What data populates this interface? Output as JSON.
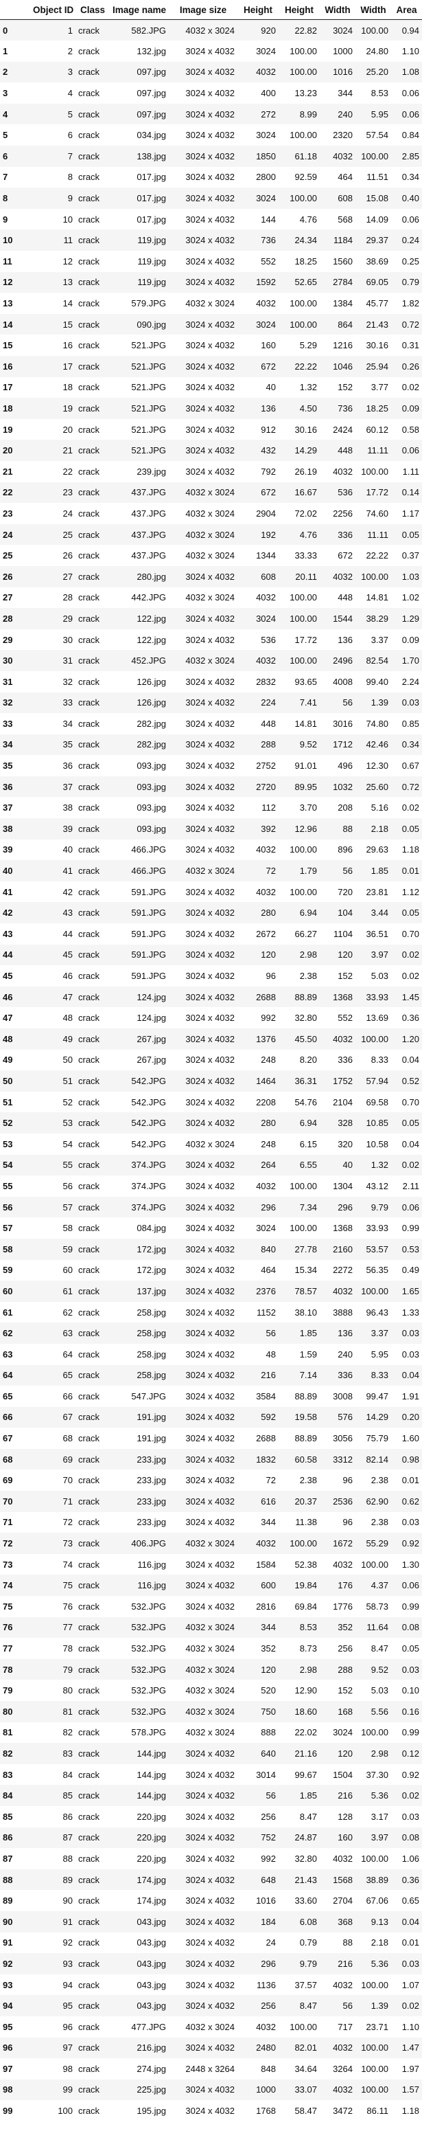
{
  "columns": [
    "",
    "Object ID",
    "Class",
    "Image name",
    "Image size",
    "Height",
    "Height",
    "Width",
    "Width",
    "Area"
  ],
  "rows": [
    [
      "0",
      "1",
      "crack",
      "582.JPG",
      "4032 x 3024",
      "920",
      "22.82",
      "3024",
      "100.00",
      "0.94"
    ],
    [
      "1",
      "2",
      "crack",
      "132.jpg",
      "3024 x 4032",
      "3024",
      "100.00",
      "1000",
      "24.80",
      "1.10"
    ],
    [
      "2",
      "3",
      "crack",
      "097.jpg",
      "3024 x 4032",
      "4032",
      "100.00",
      "1016",
      "25.20",
      "1.08"
    ],
    [
      "3",
      "4",
      "crack",
      "097.jpg",
      "3024 x 4032",
      "400",
      "13.23",
      "344",
      "8.53",
      "0.06"
    ],
    [
      "4",
      "5",
      "crack",
      "097.jpg",
      "3024 x 4032",
      "272",
      "8.99",
      "240",
      "5.95",
      "0.06"
    ],
    [
      "5",
      "6",
      "crack",
      "034.jpg",
      "3024 x 4032",
      "3024",
      "100.00",
      "2320",
      "57.54",
      "0.84"
    ],
    [
      "6",
      "7",
      "crack",
      "138.jpg",
      "3024 x 4032",
      "1850",
      "61.18",
      "4032",
      "100.00",
      "2.85"
    ],
    [
      "7",
      "8",
      "crack",
      "017.jpg",
      "3024 x 4032",
      "2800",
      "92.59",
      "464",
      "11.51",
      "0.34"
    ],
    [
      "8",
      "9",
      "crack",
      "017.jpg",
      "3024 x 4032",
      "3024",
      "100.00",
      "608",
      "15.08",
      "0.40"
    ],
    [
      "9",
      "10",
      "crack",
      "017.jpg",
      "3024 x 4032",
      "144",
      "4.76",
      "568",
      "14.09",
      "0.06"
    ],
    [
      "10",
      "11",
      "crack",
      "119.jpg",
      "3024 x 4032",
      "736",
      "24.34",
      "1184",
      "29.37",
      "0.24"
    ],
    [
      "11",
      "12",
      "crack",
      "119.jpg",
      "3024 x 4032",
      "552",
      "18.25",
      "1560",
      "38.69",
      "0.25"
    ],
    [
      "12",
      "13",
      "crack",
      "119.jpg",
      "3024 x 4032",
      "1592",
      "52.65",
      "2784",
      "69.05",
      "0.79"
    ],
    [
      "13",
      "14",
      "crack",
      "579.JPG",
      "4032 x 3024",
      "4032",
      "100.00",
      "1384",
      "45.77",
      "1.82"
    ],
    [
      "14",
      "15",
      "crack",
      "090.jpg",
      "3024 x 4032",
      "3024",
      "100.00",
      "864",
      "21.43",
      "0.72"
    ],
    [
      "15",
      "16",
      "crack",
      "521.JPG",
      "3024 x 4032",
      "160",
      "5.29",
      "1216",
      "30.16",
      "0.31"
    ],
    [
      "16",
      "17",
      "crack",
      "521.JPG",
      "3024 x 4032",
      "672",
      "22.22",
      "1046",
      "25.94",
      "0.26"
    ],
    [
      "17",
      "18",
      "crack",
      "521.JPG",
      "3024 x 4032",
      "40",
      "1.32",
      "152",
      "3.77",
      "0.02"
    ],
    [
      "18",
      "19",
      "crack",
      "521.JPG",
      "3024 x 4032",
      "136",
      "4.50",
      "736",
      "18.25",
      "0.09"
    ],
    [
      "19",
      "20",
      "crack",
      "521.JPG",
      "3024 x 4032",
      "912",
      "30.16",
      "2424",
      "60.12",
      "0.58"
    ],
    [
      "20",
      "21",
      "crack",
      "521.JPG",
      "3024 x 4032",
      "432",
      "14.29",
      "448",
      "11.11",
      "0.06"
    ],
    [
      "21",
      "22",
      "crack",
      "239.jpg",
      "3024 x 4032",
      "792",
      "26.19",
      "4032",
      "100.00",
      "1.11"
    ],
    [
      "22",
      "23",
      "crack",
      "437.JPG",
      "4032 x 3024",
      "672",
      "16.67",
      "536",
      "17.72",
      "0.14"
    ],
    [
      "23",
      "24",
      "crack",
      "437.JPG",
      "4032 x 3024",
      "2904",
      "72.02",
      "2256",
      "74.60",
      "1.17"
    ],
    [
      "24",
      "25",
      "crack",
      "437.JPG",
      "4032 x 3024",
      "192",
      "4.76",
      "336",
      "11.11",
      "0.05"
    ],
    [
      "25",
      "26",
      "crack",
      "437.JPG",
      "4032 x 3024",
      "1344",
      "33.33",
      "672",
      "22.22",
      "0.37"
    ],
    [
      "26",
      "27",
      "crack",
      "280.jpg",
      "3024 x 4032",
      "608",
      "20.11",
      "4032",
      "100.00",
      "1.03"
    ],
    [
      "27",
      "28",
      "crack",
      "442.JPG",
      "4032 x 3024",
      "4032",
      "100.00",
      "448",
      "14.81",
      "1.02"
    ],
    [
      "28",
      "29",
      "crack",
      "122.jpg",
      "3024 x 4032",
      "3024",
      "100.00",
      "1544",
      "38.29",
      "1.29"
    ],
    [
      "29",
      "30",
      "crack",
      "122.jpg",
      "3024 x 4032",
      "536",
      "17.72",
      "136",
      "3.37",
      "0.09"
    ],
    [
      "30",
      "31",
      "crack",
      "452.JPG",
      "4032 x 3024",
      "4032",
      "100.00",
      "2496",
      "82.54",
      "1.70"
    ],
    [
      "31",
      "32",
      "crack",
      "126.jpg",
      "3024 x 4032",
      "2832",
      "93.65",
      "4008",
      "99.40",
      "2.24"
    ],
    [
      "32",
      "33",
      "crack",
      "126.jpg",
      "3024 x 4032",
      "224",
      "7.41",
      "56",
      "1.39",
      "0.03"
    ],
    [
      "33",
      "34",
      "crack",
      "282.jpg",
      "3024 x 4032",
      "448",
      "14.81",
      "3016",
      "74.80",
      "0.85"
    ],
    [
      "34",
      "35",
      "crack",
      "282.jpg",
      "3024 x 4032",
      "288",
      "9.52",
      "1712",
      "42.46",
      "0.34"
    ],
    [
      "35",
      "36",
      "crack",
      "093.jpg",
      "3024 x 4032",
      "2752",
      "91.01",
      "496",
      "12.30",
      "0.67"
    ],
    [
      "36",
      "37",
      "crack",
      "093.jpg",
      "3024 x 4032",
      "2720",
      "89.95",
      "1032",
      "25.60",
      "0.72"
    ],
    [
      "37",
      "38",
      "crack",
      "093.jpg",
      "3024 x 4032",
      "112",
      "3.70",
      "208",
      "5.16",
      "0.02"
    ],
    [
      "38",
      "39",
      "crack",
      "093.jpg",
      "3024 x 4032",
      "392",
      "12.96",
      "88",
      "2.18",
      "0.05"
    ],
    [
      "39",
      "40",
      "crack",
      "466.JPG",
      "3024 x 4032",
      "4032",
      "100.00",
      "896",
      "29.63",
      "1.18"
    ],
    [
      "40",
      "41",
      "crack",
      "466.JPG",
      "4032 x 3024",
      "72",
      "1.79",
      "56",
      "1.85",
      "0.01"
    ],
    [
      "41",
      "42",
      "crack",
      "591.JPG",
      "3024 x 4032",
      "4032",
      "100.00",
      "720",
      "23.81",
      "1.12"
    ],
    [
      "42",
      "43",
      "crack",
      "591.JPG",
      "3024 x 4032",
      "280",
      "6.94",
      "104",
      "3.44",
      "0.05"
    ],
    [
      "43",
      "44",
      "crack",
      "591.JPG",
      "3024 x 4032",
      "2672",
      "66.27",
      "1104",
      "36.51",
      "0.70"
    ],
    [
      "44",
      "45",
      "crack",
      "591.JPG",
      "3024 x 4032",
      "120",
      "2.98",
      "120",
      "3.97",
      "0.02"
    ],
    [
      "45",
      "46",
      "crack",
      "591.JPG",
      "3024 x 4032",
      "96",
      "2.38",
      "152",
      "5.03",
      "0.02"
    ],
    [
      "46",
      "47",
      "crack",
      "124.jpg",
      "3024 x 4032",
      "2688",
      "88.89",
      "1368",
      "33.93",
      "1.45"
    ],
    [
      "47",
      "48",
      "crack",
      "124.jpg",
      "3024 x 4032",
      "992",
      "32.80",
      "552",
      "13.69",
      "0.36"
    ],
    [
      "48",
      "49",
      "crack",
      "267.jpg",
      "3024 x 4032",
      "1376",
      "45.50",
      "4032",
      "100.00",
      "1.20"
    ],
    [
      "49",
      "50",
      "crack",
      "267.jpg",
      "3024 x 4032",
      "248",
      "8.20",
      "336",
      "8.33",
      "0.04"
    ],
    [
      "50",
      "51",
      "crack",
      "542.JPG",
      "3024 x 4032",
      "1464",
      "36.31",
      "1752",
      "57.94",
      "0.52"
    ],
    [
      "51",
      "52",
      "crack",
      "542.JPG",
      "3024 x 4032",
      "2208",
      "54.76",
      "2104",
      "69.58",
      "0.70"
    ],
    [
      "52",
      "53",
      "crack",
      "542.JPG",
      "3024 x 4032",
      "280",
      "6.94",
      "328",
      "10.85",
      "0.05"
    ],
    [
      "53",
      "54",
      "crack",
      "542.JPG",
      "4032 x 3024",
      "248",
      "6.15",
      "320",
      "10.58",
      "0.04"
    ],
    [
      "54",
      "55",
      "crack",
      "374.JPG",
      "3024 x 4032",
      "264",
      "6.55",
      "40",
      "1.32",
      "0.02"
    ],
    [
      "55",
      "56",
      "crack",
      "374.JPG",
      "3024 x 4032",
      "4032",
      "100.00",
      "1304",
      "43.12",
      "2.11"
    ],
    [
      "56",
      "57",
      "crack",
      "374.JPG",
      "3024 x 4032",
      "296",
      "7.34",
      "296",
      "9.79",
      "0.06"
    ],
    [
      "57",
      "58",
      "crack",
      "084.jpg",
      "3024 x 4032",
      "3024",
      "100.00",
      "1368",
      "33.93",
      "0.99"
    ],
    [
      "58",
      "59",
      "crack",
      "172.jpg",
      "3024 x 4032",
      "840",
      "27.78",
      "2160",
      "53.57",
      "0.53"
    ],
    [
      "59",
      "60",
      "crack",
      "172.jpg",
      "3024 x 4032",
      "464",
      "15.34",
      "2272",
      "56.35",
      "0.49"
    ],
    [
      "60",
      "61",
      "crack",
      "137.jpg",
      "3024 x 4032",
      "2376",
      "78.57",
      "4032",
      "100.00",
      "1.65"
    ],
    [
      "61",
      "62",
      "crack",
      "258.jpg",
      "3024 x 4032",
      "1152",
      "38.10",
      "3888",
      "96.43",
      "1.33"
    ],
    [
      "62",
      "63",
      "crack",
      "258.jpg",
      "3024 x 4032",
      "56",
      "1.85",
      "136",
      "3.37",
      "0.03"
    ],
    [
      "63",
      "64",
      "crack",
      "258.jpg",
      "3024 x 4032",
      "48",
      "1.59",
      "240",
      "5.95",
      "0.03"
    ],
    [
      "64",
      "65",
      "crack",
      "258.jpg",
      "3024 x 4032",
      "216",
      "7.14",
      "336",
      "8.33",
      "0.04"
    ],
    [
      "65",
      "66",
      "crack",
      "547.JPG",
      "3024 x 4032",
      "3584",
      "88.89",
      "3008",
      "99.47",
      "1.91"
    ],
    [
      "66",
      "67",
      "crack",
      "191.jpg",
      "3024 x 4032",
      "592",
      "19.58",
      "576",
      "14.29",
      "0.20"
    ],
    [
      "67",
      "68",
      "crack",
      "191.jpg",
      "3024 x 4032",
      "2688",
      "88.89",
      "3056",
      "75.79",
      "1.60"
    ],
    [
      "68",
      "69",
      "crack",
      "233.jpg",
      "3024 x 4032",
      "1832",
      "60.58",
      "3312",
      "82.14",
      "0.98"
    ],
    [
      "69",
      "70",
      "crack",
      "233.jpg",
      "3024 x 4032",
      "72",
      "2.38",
      "96",
      "2.38",
      "0.01"
    ],
    [
      "70",
      "71",
      "crack",
      "233.jpg",
      "3024 x 4032",
      "616",
      "20.37",
      "2536",
      "62.90",
      "0.62"
    ],
    [
      "71",
      "72",
      "crack",
      "233.jpg",
      "3024 x 4032",
      "344",
      "11.38",
      "96",
      "2.38",
      "0.03"
    ],
    [
      "72",
      "73",
      "crack",
      "406.JPG",
      "4032 x 3024",
      "4032",
      "100.00",
      "1672",
      "55.29",
      "0.92"
    ],
    [
      "73",
      "74",
      "crack",
      "116.jpg",
      "3024 x 4032",
      "1584",
      "52.38",
      "4032",
      "100.00",
      "1.30"
    ],
    [
      "74",
      "75",
      "crack",
      "116.jpg",
      "3024 x 4032",
      "600",
      "19.84",
      "176",
      "4.37",
      "0.06"
    ],
    [
      "75",
      "76",
      "crack",
      "532.JPG",
      "3024 x 4032",
      "2816",
      "69.84",
      "1776",
      "58.73",
      "0.99"
    ],
    [
      "76",
      "77",
      "crack",
      "532.JPG",
      "4032 x 3024",
      "344",
      "8.53",
      "352",
      "11.64",
      "0.08"
    ],
    [
      "77",
      "78",
      "crack",
      "532.JPG",
      "4032 x 3024",
      "352",
      "8.73",
      "256",
      "8.47",
      "0.05"
    ],
    [
      "78",
      "79",
      "crack",
      "532.JPG",
      "4032 x 3024",
      "120",
      "2.98",
      "288",
      "9.52",
      "0.03"
    ],
    [
      "79",
      "80",
      "crack",
      "532.JPG",
      "4032 x 3024",
      "520",
      "12.90",
      "152",
      "5.03",
      "0.10"
    ],
    [
      "80",
      "81",
      "crack",
      "532.JPG",
      "4032 x 3024",
      "750",
      "18.60",
      "168",
      "5.56",
      "0.16"
    ],
    [
      "81",
      "82",
      "crack",
      "578.JPG",
      "4032 x 3024",
      "888",
      "22.02",
      "3024",
      "100.00",
      "0.99"
    ],
    [
      "82",
      "83",
      "crack",
      "144.jpg",
      "3024 x 4032",
      "640",
      "21.16",
      "120",
      "2.98",
      "0.12"
    ],
    [
      "83",
      "84",
      "crack",
      "144.jpg",
      "3024 x 4032",
      "3014",
      "99.67",
      "1504",
      "37.30",
      "0.92"
    ],
    [
      "84",
      "85",
      "crack",
      "144.jpg",
      "3024 x 4032",
      "56",
      "1.85",
      "216",
      "5.36",
      "0.02"
    ],
    [
      "85",
      "86",
      "crack",
      "220.jpg",
      "3024 x 4032",
      "256",
      "8.47",
      "128",
      "3.17",
      "0.03"
    ],
    [
      "86",
      "87",
      "crack",
      "220.jpg",
      "3024 x 4032",
      "752",
      "24.87",
      "160",
      "3.97",
      "0.08"
    ],
    [
      "87",
      "88",
      "crack",
      "220.jpg",
      "3024 x 4032",
      "992",
      "32.80",
      "4032",
      "100.00",
      "1.06"
    ],
    [
      "88",
      "89",
      "crack",
      "174.jpg",
      "3024 x 4032",
      "648",
      "21.43",
      "1568",
      "38.89",
      "0.36"
    ],
    [
      "89",
      "90",
      "crack",
      "174.jpg",
      "3024 x 4032",
      "1016",
      "33.60",
      "2704",
      "67.06",
      "0.65"
    ],
    [
      "90",
      "91",
      "crack",
      "043.jpg",
      "3024 x 4032",
      "184",
      "6.08",
      "368",
      "9.13",
      "0.04"
    ],
    [
      "91",
      "92",
      "crack",
      "043.jpg",
      "3024 x 4032",
      "24",
      "0.79",
      "88",
      "2.18",
      "0.01"
    ],
    [
      "92",
      "93",
      "crack",
      "043.jpg",
      "3024 x 4032",
      "296",
      "9.79",
      "216",
      "5.36",
      "0.03"
    ],
    [
      "93",
      "94",
      "crack",
      "043.jpg",
      "3024 x 4032",
      "1136",
      "37.57",
      "4032",
      "100.00",
      "1.07"
    ],
    [
      "94",
      "95",
      "crack",
      "043.jpg",
      "3024 x 4032",
      "256",
      "8.47",
      "56",
      "1.39",
      "0.02"
    ],
    [
      "95",
      "96",
      "crack",
      "477.JPG",
      "4032 x 3024",
      "4032",
      "100.00",
      "717",
      "23.71",
      "1.10"
    ],
    [
      "96",
      "97",
      "crack",
      "216.jpg",
      "3024 x 4032",
      "2480",
      "82.01",
      "4032",
      "100.00",
      "1.47"
    ],
    [
      "97",
      "98",
      "crack",
      "274.jpg",
      "2448 x 3264",
      "848",
      "34.64",
      "3264",
      "100.00",
      "1.97"
    ],
    [
      "98",
      "99",
      "crack",
      "225.jpg",
      "3024 x 4032",
      "1000",
      "33.07",
      "4032",
      "100.00",
      "1.57"
    ],
    [
      "99",
      "100",
      "crack",
      "195.jpg",
      "3024 x 4032",
      "1768",
      "58.47",
      "3472",
      "86.11",
      "1.18"
    ]
  ]
}
